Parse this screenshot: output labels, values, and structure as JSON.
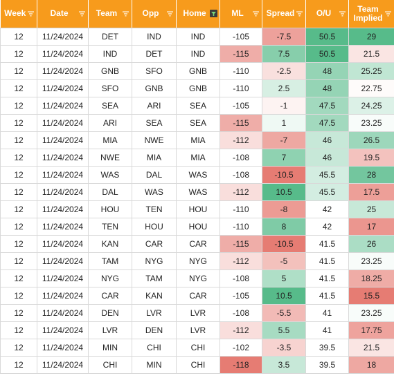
{
  "columns": [
    {
      "key": "week",
      "label": "Week",
      "filter_active": false
    },
    {
      "key": "date",
      "label": "Date",
      "filter_active": false
    },
    {
      "key": "team",
      "label": "Team",
      "filter_active": false
    },
    {
      "key": "opp",
      "label": "Opp",
      "filter_active": false
    },
    {
      "key": "home",
      "label": "Home",
      "filter_active": true
    },
    {
      "key": "ml",
      "label": "ML",
      "filter_active": false
    },
    {
      "key": "spread",
      "label": "Spread",
      "filter_active": false
    },
    {
      "key": "ou",
      "label": "O/U",
      "filter_active": false
    },
    {
      "key": "implied",
      "label": "Team Implied",
      "filter_active": false
    }
  ],
  "colors": {
    "header_bg": "#f79b1c",
    "header_text": "#ffffff",
    "scale_green": "#57bb8a",
    "scale_white": "#ffffff",
    "scale_red": "#e67c73"
  },
  "rows": [
    {
      "week": "12",
      "date": "11/24/2024",
      "team": "DET",
      "opp": "IND",
      "home": "IND",
      "ml": "-105",
      "spread": "-7.5",
      "ou": "50.5",
      "implied": "29"
    },
    {
      "week": "12",
      "date": "11/24/2024",
      "team": "IND",
      "opp": "DET",
      "home": "IND",
      "ml": "-115",
      "spread": "7.5",
      "ou": "50.5",
      "implied": "21.5"
    },
    {
      "week": "12",
      "date": "11/24/2024",
      "team": "GNB",
      "opp": "SFO",
      "home": "GNB",
      "ml": "-110",
      "spread": "-2.5",
      "ou": "48",
      "implied": "25.25"
    },
    {
      "week": "12",
      "date": "11/24/2024",
      "team": "SFO",
      "opp": "GNB",
      "home": "GNB",
      "ml": "-110",
      "spread": "2.5",
      "ou": "48",
      "implied": "22.75"
    },
    {
      "week": "12",
      "date": "11/24/2024",
      "team": "SEA",
      "opp": "ARI",
      "home": "SEA",
      "ml": "-105",
      "spread": "-1",
      "ou": "47.5",
      "implied": "24.25"
    },
    {
      "week": "12",
      "date": "11/24/2024",
      "team": "ARI",
      "opp": "SEA",
      "home": "SEA",
      "ml": "-115",
      "spread": "1",
      "ou": "47.5",
      "implied": "23.25"
    },
    {
      "week": "12",
      "date": "11/24/2024",
      "team": "MIA",
      "opp": "NWE",
      "home": "MIA",
      "ml": "-112",
      "spread": "-7",
      "ou": "46",
      "implied": "26.5"
    },
    {
      "week": "12",
      "date": "11/24/2024",
      "team": "NWE",
      "opp": "MIA",
      "home": "MIA",
      "ml": "-108",
      "spread": "7",
      "ou": "46",
      "implied": "19.5"
    },
    {
      "week": "12",
      "date": "11/24/2024",
      "team": "WAS",
      "opp": "DAL",
      "home": "WAS",
      "ml": "-108",
      "spread": "-10.5",
      "ou": "45.5",
      "implied": "28"
    },
    {
      "week": "12",
      "date": "11/24/2024",
      "team": "DAL",
      "opp": "WAS",
      "home": "WAS",
      "ml": "-112",
      "spread": "10.5",
      "ou": "45.5",
      "implied": "17.5"
    },
    {
      "week": "12",
      "date": "11/24/2024",
      "team": "HOU",
      "opp": "TEN",
      "home": "HOU",
      "ml": "-110",
      "spread": "-8",
      "ou": "42",
      "implied": "25"
    },
    {
      "week": "12",
      "date": "11/24/2024",
      "team": "TEN",
      "opp": "HOU",
      "home": "HOU",
      "ml": "-110",
      "spread": "8",
      "ou": "42",
      "implied": "17"
    },
    {
      "week": "12",
      "date": "11/24/2024",
      "team": "KAN",
      "opp": "CAR",
      "home": "CAR",
      "ml": "-115",
      "spread": "-10.5",
      "ou": "41.5",
      "implied": "26"
    },
    {
      "week": "12",
      "date": "11/24/2024",
      "team": "TAM",
      "opp": "NYG",
      "home": "NYG",
      "ml": "-112",
      "spread": "-5",
      "ou": "41.5",
      "implied": "23.25"
    },
    {
      "week": "12",
      "date": "11/24/2024",
      "team": "NYG",
      "opp": "TAM",
      "home": "NYG",
      "ml": "-108",
      "spread": "5",
      "ou": "41.5",
      "implied": "18.25"
    },
    {
      "week": "12",
      "date": "11/24/2024",
      "team": "CAR",
      "opp": "KAN",
      "home": "CAR",
      "ml": "-105",
      "spread": "10.5",
      "ou": "41.5",
      "implied": "15.5"
    },
    {
      "week": "12",
      "date": "11/24/2024",
      "team": "DEN",
      "opp": "LVR",
      "home": "LVR",
      "ml": "-108",
      "spread": "-5.5",
      "ou": "41",
      "implied": "23.25"
    },
    {
      "week": "12",
      "date": "11/24/2024",
      "team": "LVR",
      "opp": "DEN",
      "home": "LVR",
      "ml": "-112",
      "spread": "5.5",
      "ou": "41",
      "implied": "17.75"
    },
    {
      "week": "12",
      "date": "11/24/2024",
      "team": "MIN",
      "opp": "CHI",
      "home": "CHI",
      "ml": "-102",
      "spread": "-3.5",
      "ou": "39.5",
      "implied": "21.5"
    },
    {
      "week": "12",
      "date": "11/24/2024",
      "team": "CHI",
      "opp": "MIN",
      "home": "CHI",
      "ml": "-118",
      "spread": "3.5",
      "ou": "39.5",
      "implied": "18"
    }
  ]
}
